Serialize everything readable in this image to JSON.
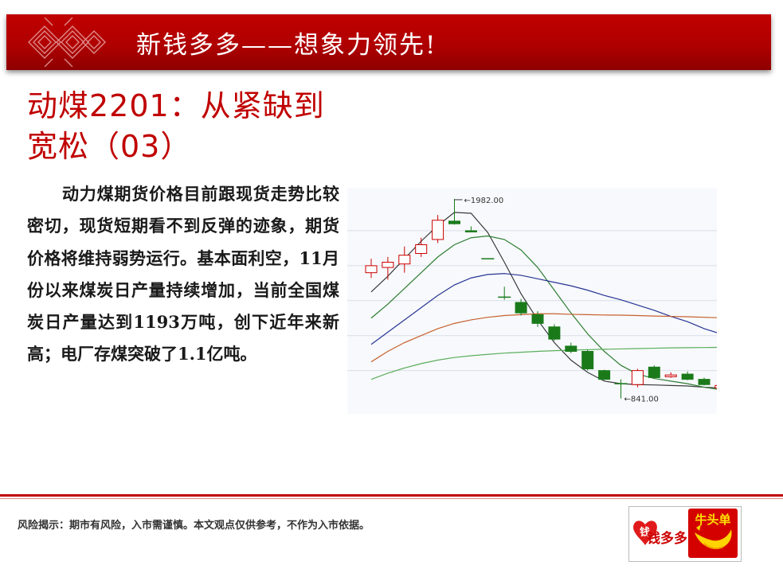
{
  "header": {
    "title": "新钱多多——想象力领先!"
  },
  "article": {
    "title_line1": "动煤2201：从紧缺到",
    "title_line2": "宽松（03）",
    "body": "动力煤期货价格目前跟现货走势比较密切，现货短期看不到反弹的迹象，期货价格将维持弱势运行。基本面利空，11月份以来煤炭日产量持续增加，当前全国煤炭日产量达到1193万吨，创下近年来新高；电厂存煤突破了1.1亿吨。"
  },
  "chart_data": {
    "type": "candlestick",
    "annotations": {
      "high_label": "1982.00",
      "low_label": "841.00"
    },
    "high": 1982.0,
    "low": 841.0,
    "candles": [
      {
        "o": 1560,
        "c": 1600,
        "h": 1640,
        "l": 1530,
        "dir": "up"
      },
      {
        "o": 1590,
        "c": 1620,
        "h": 1650,
        "l": 1520,
        "dir": "up"
      },
      {
        "o": 1610,
        "c": 1660,
        "h": 1710,
        "l": 1560,
        "dir": "up"
      },
      {
        "o": 1670,
        "c": 1720,
        "h": 1760,
        "l": 1650,
        "dir": "up"
      },
      {
        "o": 1750,
        "c": 1860,
        "h": 1890,
        "l": 1730,
        "dir": "up"
      },
      {
        "o": 1855,
        "c": 1840,
        "h": 1982,
        "l": 1835,
        "dir": "down"
      },
      {
        "o": 1795,
        "c": 1800,
        "h": 1825,
        "l": 1795,
        "dir": "down"
      },
      {
        "o": 1640,
        "c": 1640,
        "h": 1640,
        "l": 1640,
        "dir": "flat"
      },
      {
        "o": 1420,
        "c": 1420,
        "h": 1480,
        "l": 1405,
        "dir": "flat"
      },
      {
        "o": 1390,
        "c": 1330,
        "h": 1410,
        "l": 1315,
        "dir": "down"
      },
      {
        "o": 1320,
        "c": 1270,
        "h": 1340,
        "l": 1250,
        "dir": "down"
      },
      {
        "o": 1250,
        "c": 1180,
        "h": 1265,
        "l": 1170,
        "dir": "down"
      },
      {
        "o": 1140,
        "c": 1110,
        "h": 1160,
        "l": 1100,
        "dir": "down"
      },
      {
        "o": 1110,
        "c": 1010,
        "h": 1120,
        "l": 1000,
        "dir": "down"
      },
      {
        "o": 1000,
        "c": 950,
        "h": 1005,
        "l": 945,
        "dir": "down"
      },
      {
        "o": 925,
        "c": 925,
        "h": 950,
        "l": 841,
        "dir": "flat"
      },
      {
        "o": 920,
        "c": 1000,
        "h": 1010,
        "l": 905,
        "dir": "up"
      },
      {
        "o": 1020,
        "c": 960,
        "h": 1030,
        "l": 955,
        "dir": "down"
      },
      {
        "o": 965,
        "c": 975,
        "h": 990,
        "l": 958,
        "dir": "up"
      },
      {
        "o": 980,
        "c": 950,
        "h": 995,
        "l": 945,
        "dir": "down"
      },
      {
        "o": 950,
        "c": 920,
        "h": 960,
        "l": 915,
        "dir": "down"
      },
      {
        "o": 900,
        "c": 915,
        "h": 925,
        "l": 895,
        "dir": "up"
      }
    ],
    "moving_averages": [
      {
        "color": "#3a3a3a",
        "values": [
          1450,
          1540,
          1640,
          1740,
          1830,
          1905,
          1900,
          1790,
          1620,
          1440,
          1290,
          1160,
          1060,
          990,
          940,
          925,
          920,
          918,
          915,
          912,
          905,
          900
        ]
      },
      {
        "color": "#2e7d32",
        "values": [
          1300,
          1380,
          1470,
          1560,
          1650,
          1720,
          1760,
          1770,
          1750,
          1690,
          1590,
          1460,
          1330,
          1210,
          1110,
          1030,
          980,
          955,
          940,
          925,
          905,
          890
        ]
      },
      {
        "color": "#283593",
        "values": [
          1150,
          1220,
          1290,
          1360,
          1430,
          1490,
          1530,
          1550,
          1555,
          1545,
          1525,
          1505,
          1485,
          1460,
          1430,
          1405,
          1375,
          1345,
          1310,
          1280,
          1240,
          1210
        ]
      },
      {
        "color": "#c8602e",
        "values": [
          1050,
          1110,
          1160,
          1200,
          1240,
          1270,
          1290,
          1305,
          1315,
          1320,
          1325,
          1325,
          1322,
          1320,
          1318,
          1317,
          1315,
          1312,
          1310,
          1308,
          1305,
          1302
        ]
      },
      {
        "color": "#5cae5c",
        "values": [
          950,
          985,
          1015,
          1040,
          1060,
          1075,
          1085,
          1093,
          1100,
          1105,
          1110,
          1114,
          1117,
          1120,
          1122,
          1124,
          1126,
          1128,
          1130,
          1131,
          1132,
          1133
        ]
      }
    ]
  },
  "footer": {
    "risk_notice": "风险揭示：期市有风险，入市需谨慎。本文观点仅供参考，不作为入市依据。",
    "logo_left": "钱多多",
    "logo_right": "牛头单"
  },
  "colors": {
    "brand_red": "#c00000",
    "candle_up": "#cc0000",
    "candle_down": "#1a7a1a"
  }
}
